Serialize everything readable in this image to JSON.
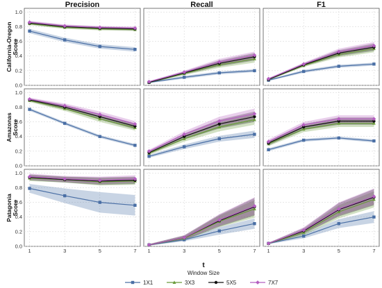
{
  "chart_data": {
    "type": "line",
    "x": [
      1,
      3,
      5,
      7
    ],
    "xlabel": "t",
    "columns": [
      "Precision",
      "Recall",
      "F1"
    ],
    "rows": [
      {
        "name": "California-Oregon",
        "ylabel_line1": "California-Oregon",
        "ylabel_line2": "Score"
      },
      {
        "name": "Amazonas",
        "ylabel_line1": "Amazonas",
        "ylabel_line2": "Score"
      },
      {
        "name": "Patagonia",
        "ylabel_line1": "Patagonia",
        "ylabel_line2": "Score"
      }
    ],
    "ylim": [
      0,
      1.05
    ],
    "yticks": [
      0.0,
      0.2,
      0.4,
      0.6,
      0.8,
      1.0
    ],
    "ytick_labels": [
      "0.0",
      "0.2",
      "0.4",
      "0.6",
      "0.8",
      "1.0"
    ],
    "xtick_labels": [
      "1",
      "3",
      "5",
      "7"
    ],
    "grid": true,
    "legend": {
      "title": "Window Size",
      "placement": "bottom",
      "entries": [
        "1X1",
        "3X3",
        "5X5",
        "7X7"
      ]
    },
    "series_styles": [
      {
        "name": "1X1",
        "color": "#4a6fa5",
        "marker": "square"
      },
      {
        "name": "3X3",
        "color": "#6a9a3a",
        "marker": "triangle"
      },
      {
        "name": "5X5",
        "color": "#111111",
        "marker": "circle"
      },
      {
        "name": "7X7",
        "color": "#b55fc0",
        "marker": "diamond"
      }
    ],
    "panels": [
      [
        {
          "series": [
            {
              "name": "1X1",
              "values": [
                0.74,
                0.62,
                0.53,
                0.49
              ],
              "band": [
                0.03,
                0.03,
                0.03,
                0.03
              ]
            },
            {
              "name": "3X3",
              "values": [
                0.84,
                0.79,
                0.77,
                0.76
              ],
              "band": [
                0.02,
                0.02,
                0.02,
                0.02
              ]
            },
            {
              "name": "5X5",
              "values": [
                0.85,
                0.8,
                0.78,
                0.77
              ],
              "band": [
                0.02,
                0.02,
                0.02,
                0.02
              ]
            },
            {
              "name": "7X7",
              "values": [
                0.86,
                0.81,
                0.79,
                0.78
              ],
              "band": [
                0.02,
                0.02,
                0.02,
                0.02
              ]
            }
          ]
        },
        {
          "series": [
            {
              "name": "1X1",
              "values": [
                0.04,
                0.11,
                0.17,
                0.2
              ],
              "band": [
                0.01,
                0.02,
                0.02,
                0.02
              ]
            },
            {
              "name": "3X3",
              "values": [
                0.04,
                0.16,
                0.28,
                0.36
              ],
              "band": [
                0.01,
                0.02,
                0.04,
                0.05
              ]
            },
            {
              "name": "5X5",
              "values": [
                0.04,
                0.17,
                0.3,
                0.39
              ],
              "band": [
                0.01,
                0.02,
                0.04,
                0.05
              ]
            },
            {
              "name": "7X7",
              "values": [
                0.05,
                0.18,
                0.32,
                0.41
              ],
              "band": [
                0.01,
                0.02,
                0.04,
                0.05
              ]
            }
          ]
        },
        {
          "series": [
            {
              "name": "1X1",
              "values": [
                0.07,
                0.19,
                0.26,
                0.29
              ],
              "band": [
                0.01,
                0.02,
                0.02,
                0.02
              ]
            },
            {
              "name": "3X3",
              "values": [
                0.08,
                0.27,
                0.42,
                0.5
              ],
              "band": [
                0.01,
                0.02,
                0.04,
                0.05
              ]
            },
            {
              "name": "5X5",
              "values": [
                0.08,
                0.28,
                0.44,
                0.52
              ],
              "band": [
                0.01,
                0.02,
                0.04,
                0.05
              ]
            },
            {
              "name": "7X7",
              "values": [
                0.09,
                0.29,
                0.46,
                0.54
              ],
              "band": [
                0.01,
                0.02,
                0.04,
                0.05
              ]
            }
          ]
        }
      ],
      [
        {
          "series": [
            {
              "name": "1X1",
              "values": [
                0.77,
                0.58,
                0.4,
                0.28
              ],
              "band": [
                0.02,
                0.02,
                0.02,
                0.02
              ]
            },
            {
              "name": "3X3",
              "values": [
                0.89,
                0.78,
                0.64,
                0.52
              ],
              "band": [
                0.02,
                0.03,
                0.04,
                0.04
              ]
            },
            {
              "name": "5X5",
              "values": [
                0.9,
                0.8,
                0.67,
                0.54
              ],
              "band": [
                0.02,
                0.03,
                0.04,
                0.04
              ]
            },
            {
              "name": "7X7",
              "values": [
                0.91,
                0.82,
                0.7,
                0.57
              ],
              "band": [
                0.02,
                0.03,
                0.04,
                0.04
              ]
            }
          ]
        },
        {
          "series": [
            {
              "name": "1X1",
              "values": [
                0.13,
                0.26,
                0.37,
                0.43
              ],
              "band": [
                0.02,
                0.03,
                0.04,
                0.05
              ]
            },
            {
              "name": "3X3",
              "values": [
                0.17,
                0.37,
                0.53,
                0.63
              ],
              "band": [
                0.02,
                0.04,
                0.06,
                0.07
              ]
            },
            {
              "name": "5X5",
              "values": [
                0.18,
                0.4,
                0.57,
                0.67
              ],
              "band": [
                0.02,
                0.04,
                0.06,
                0.07
              ]
            },
            {
              "name": "7X7",
              "values": [
                0.2,
                0.43,
                0.61,
                0.71
              ],
              "band": [
                0.02,
                0.04,
                0.06,
                0.07
              ]
            }
          ]
        },
        {
          "series": [
            {
              "name": "1X1",
              "values": [
                0.22,
                0.35,
                0.38,
                0.34
              ],
              "band": [
                0.02,
                0.02,
                0.02,
                0.02
              ]
            },
            {
              "name": "3X3",
              "values": [
                0.3,
                0.5,
                0.58,
                0.58
              ],
              "band": [
                0.03,
                0.04,
                0.05,
                0.05
              ]
            },
            {
              "name": "5X5",
              "values": [
                0.31,
                0.53,
                0.61,
                0.61
              ],
              "band": [
                0.03,
                0.04,
                0.05,
                0.05
              ]
            },
            {
              "name": "7X7",
              "values": [
                0.33,
                0.56,
                0.64,
                0.64
              ],
              "band": [
                0.03,
                0.04,
                0.05,
                0.05
              ]
            }
          ]
        }
      ],
      [
        {
          "series": [
            {
              "name": "1X1",
              "values": [
                0.79,
                0.69,
                0.6,
                0.56
              ],
              "band": [
                0.06,
                0.1,
                0.14,
                0.14
              ]
            },
            {
              "name": "3X3",
              "values": [
                0.93,
                0.91,
                0.88,
                0.89
              ],
              "band": [
                0.04,
                0.04,
                0.05,
                0.05
              ]
            },
            {
              "name": "5X5",
              "values": [
                0.94,
                0.91,
                0.89,
                0.9
              ],
              "band": [
                0.04,
                0.04,
                0.05,
                0.05
              ]
            },
            {
              "name": "7X7",
              "values": [
                0.95,
                0.92,
                0.9,
                0.92
              ],
              "band": [
                0.04,
                0.04,
                0.05,
                0.05
              ]
            }
          ]
        },
        {
          "series": [
            {
              "name": "1X1",
              "values": [
                0.02,
                0.09,
                0.21,
                0.31
              ],
              "band": [
                0.01,
                0.02,
                0.05,
                0.07
              ]
            },
            {
              "name": "3X3",
              "values": [
                0.02,
                0.11,
                0.34,
                0.51
              ],
              "band": [
                0.01,
                0.03,
                0.08,
                0.12
              ]
            },
            {
              "name": "5X5",
              "values": [
                0.02,
                0.12,
                0.35,
                0.54
              ],
              "band": [
                0.01,
                0.03,
                0.08,
                0.12
              ]
            },
            {
              "name": "7X7",
              "values": [
                0.02,
                0.12,
                0.36,
                0.55
              ],
              "band": [
                0.01,
                0.03,
                0.08,
                0.12
              ]
            }
          ]
        },
        {
          "series": [
            {
              "name": "1X1",
              "values": [
                0.04,
                0.14,
                0.31,
                0.4
              ],
              "band": [
                0.01,
                0.03,
                0.06,
                0.08
              ]
            },
            {
              "name": "3X3",
              "values": [
                0.04,
                0.19,
                0.47,
                0.64
              ],
              "band": [
                0.01,
                0.04,
                0.09,
                0.11
              ]
            },
            {
              "name": "5X5",
              "values": [
                0.04,
                0.21,
                0.5,
                0.67
              ],
              "band": [
                0.01,
                0.04,
                0.09,
                0.11
              ]
            },
            {
              "name": "7X7",
              "values": [
                0.04,
                0.22,
                0.51,
                0.68
              ],
              "band": [
                0.01,
                0.04,
                0.09,
                0.11
              ]
            }
          ]
        }
      ]
    ]
  }
}
